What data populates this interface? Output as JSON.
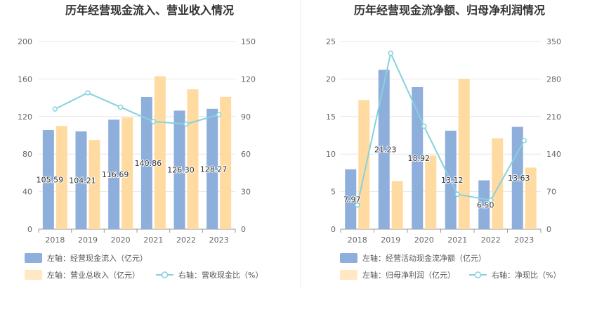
{
  "chart_data": [
    {
      "type": "bar+line",
      "title": "历年经营现金流入、营业收入情况",
      "categories": [
        "2018",
        "2019",
        "2020",
        "2021",
        "2022",
        "2023"
      ],
      "left_axis": {
        "ylim": [
          0,
          200
        ],
        "ticks": [
          "0",
          "40",
          "80",
          "120",
          "160",
          "200"
        ]
      },
      "right_axis": {
        "ylim": [
          0,
          150
        ],
        "ticks": [
          "0",
          "30",
          "60",
          "90",
          "120",
          "150"
        ]
      },
      "series": [
        {
          "name": "左轴：经营现金流入（亿元）",
          "type": "bar",
          "axis": "left",
          "color": "#8eaedc",
          "values": [
            105.59,
            104.21,
            116.69,
            140.86,
            126.3,
            128.27
          ],
          "labels": [
            "105.59",
            "104.21",
            "116.69",
            "140.86",
            "126.30",
            "128.27"
          ]
        },
        {
          "name": "左轴：营业总收入（亿元）",
          "type": "bar",
          "axis": "left",
          "color": "#ffdba1",
          "values": [
            110,
            95,
            119,
            163,
            149,
            141
          ]
        },
        {
          "name": "右轴：营收现金比（%）",
          "type": "line",
          "axis": "right",
          "color": "#86d2dc",
          "values": [
            96,
            109,
            97.5,
            86,
            84,
            91.5
          ]
        }
      ],
      "legend": "bottom-left",
      "grid": true
    },
    {
      "type": "bar+line",
      "title": "历年经营现金流净额、归母净利润情况",
      "categories": [
        "2018",
        "2019",
        "2020",
        "2021",
        "2022",
        "2023"
      ],
      "left_axis": {
        "ylim": [
          0,
          25
        ],
        "ticks": [
          "0",
          "5",
          "10",
          "15",
          "20",
          "25"
        ]
      },
      "right_axis": {
        "ylim": [
          0,
          350
        ],
        "ticks": [
          "0",
          "70",
          "140",
          "210",
          "280",
          "350"
        ]
      },
      "series": [
        {
          "name": "左轴：经营活动现金流净额（亿元）",
          "type": "bar",
          "axis": "left",
          "color": "#8eaedc",
          "values": [
            7.97,
            21.23,
            18.92,
            13.12,
            6.5,
            13.63
          ],
          "labels": [
            "7.97",
            "21.23",
            "18.92",
            "13.12",
            "6.50",
            "13.63"
          ]
        },
        {
          "name": "左轴：归母净利润（亿元）",
          "type": "bar",
          "axis": "left",
          "color": "#ffdba1",
          "values": [
            17.2,
            6.4,
            9.8,
            20,
            12.1,
            8.2
          ]
        },
        {
          "name": "右轴：净现比（%）",
          "type": "line",
          "axis": "right",
          "color": "#86d2dc",
          "values": [
            45,
            328,
            192,
            65,
            54,
            165
          ]
        }
      ],
      "legend": "bottom-left",
      "grid": true
    }
  ]
}
